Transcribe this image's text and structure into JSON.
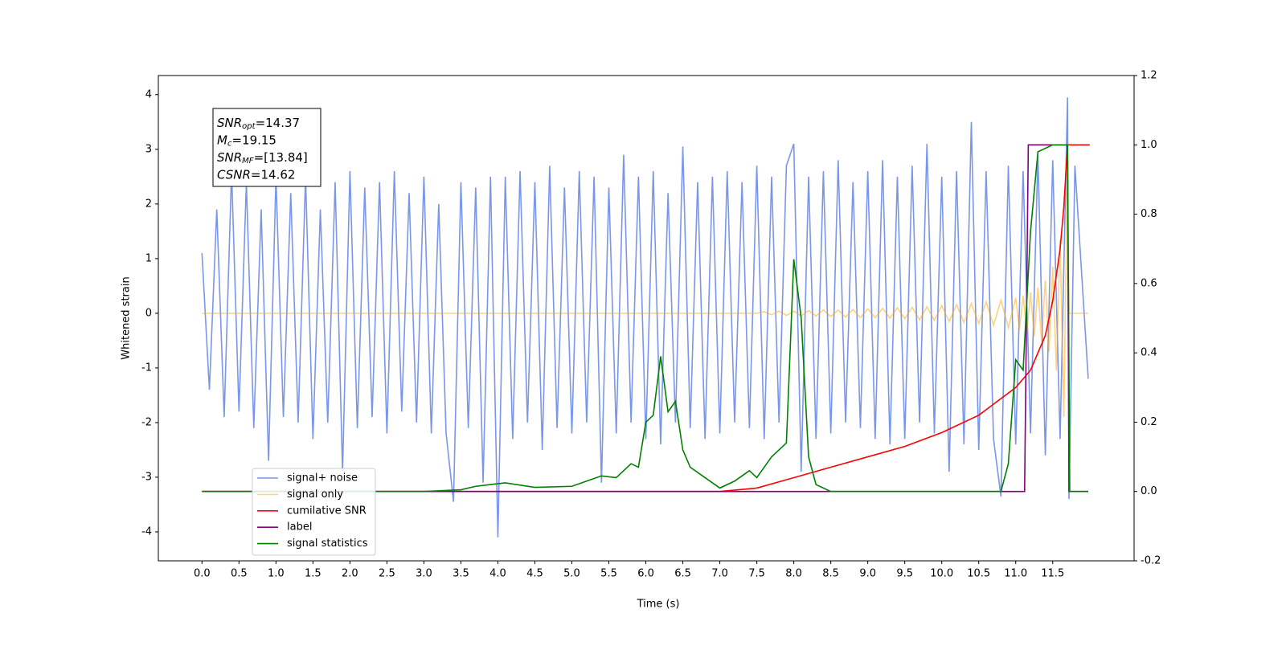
{
  "chart_data": {
    "type": "line",
    "xlabel": "Time (s)",
    "ylabel": "Whitened strain",
    "xlim": [
      -0.59,
      12.6
    ],
    "ylim": [
      -4.53,
      4.35
    ],
    "y2lim": [
      -0.2,
      1.2
    ],
    "xticks": [
      {
        "value": 0,
        "label": "0.0"
      },
      0.5,
      {
        "value": 1,
        "label": "1.0"
      },
      1.5,
      {
        "value": 2,
        "label": "2.0"
      },
      2.5,
      {
        "value": 3,
        "label": "3.0"
      },
      3.5,
      {
        "value": 4,
        "label": "4.0"
      },
      4.5,
      {
        "value": 5,
        "label": "5.0"
      },
      5.5,
      {
        "value": 6,
        "label": "6.0"
      },
      6.5,
      {
        "value": 7,
        "label": "7.0"
      },
      7.5,
      {
        "value": 8,
        "label": "8.0"
      },
      8.5,
      {
        "value": 9,
        "label": "9.0"
      },
      9.5,
      {
        "value": 10,
        "label": "10.0"
      },
      10.5,
      {
        "value": 11,
        "label": "11.0"
      },
      11.5
    ],
    "yticks": [
      -4,
      -3,
      -2,
      -1,
      0,
      1,
      2,
      3,
      4
    ],
    "y2ticks": [
      -0.2,
      {
        "value": 0,
        "label": "0.0"
      },
      0.2,
      0.4,
      0.6,
      0.8,
      {
        "value": 1,
        "label": "1.0"
      },
      1.2
    ],
    "legend": "lower left",
    "annotations": [
      {
        "base": "SNR",
        "sub": "opt",
        "text": "=14.37"
      },
      {
        "base": "M",
        "sub": "c",
        "text": "=19.15"
      },
      {
        "base": "SNR",
        "sub": "MF",
        "text": "=[13.84]"
      },
      {
        "base": "CSNR",
        "sub": null,
        "text": "=14.62"
      }
    ],
    "series": [
      {
        "name": "signal+ noise",
        "color": "#4169e1",
        "opacity": 0.7,
        "axis": "y",
        "x": [
          0,
          0.1,
          0.2,
          0.3,
          0.4,
          0.5,
          0.6,
          0.7,
          0.8,
          0.9,
          1,
          1.1,
          1.2,
          1.3,
          1.4,
          1.5,
          1.6,
          1.7,
          1.8,
          1.9,
          2,
          2.1,
          2.2,
          2.3,
          2.4,
          2.5,
          2.6,
          2.7,
          2.8,
          2.9,
          3,
          3.1,
          3.2,
          3.3,
          3.4,
          3.5,
          3.6,
          3.7,
          3.8,
          3.9,
          4,
          4.1,
          4.2,
          4.3,
          4.4,
          4.5,
          4.6,
          4.7,
          4.8,
          4.9,
          5,
          5.1,
          5.2,
          5.3,
          5.4,
          5.5,
          5.6,
          5.7,
          5.8,
          5.9,
          6,
          6.1,
          6.2,
          6.3,
          6.4,
          6.5,
          6.6,
          6.7,
          6.8,
          6.9,
          7,
          7.1,
          7.2,
          7.3,
          7.4,
          7.5,
          7.6,
          7.7,
          7.8,
          7.9,
          8,
          8.1,
          8.2,
          8.3,
          8.4,
          8.5,
          8.6,
          8.7,
          8.8,
          8.9,
          9,
          9.1,
          9.2,
          9.3,
          9.4,
          9.5,
          9.6,
          9.7,
          9.8,
          9.9,
          10,
          10.1,
          10.2,
          10.3,
          10.4,
          10.5,
          10.6,
          10.7,
          10.8,
          10.9,
          11,
          11.1,
          11.2,
          11.3,
          11.4,
          11.5,
          11.6,
          11.7,
          11.72,
          11.8,
          11.98
        ],
        "values": [
          1.1,
          -1.4,
          1.9,
          -1.9,
          2.6,
          -1.8,
          2.4,
          -2.1,
          1.9,
          -2.7,
          2.5,
          -1.9,
          2.2,
          -2.0,
          2.5,
          -2.3,
          1.9,
          -2.0,
          2.4,
          -2.9,
          2.6,
          -2.1,
          2.3,
          -1.9,
          2.4,
          -2.2,
          2.6,
          -1.8,
          2.2,
          -2.0,
          2.5,
          -2.2,
          2.0,
          -2.2,
          -3.45,
          2.4,
          -2.1,
          2.3,
          -3.1,
          2.5,
          -4.1,
          2.5,
          -2.3,
          2.6,
          -2.0,
          2.4,
          -2.5,
          2.7,
          -2.1,
          2.3,
          -2.2,
          2.6,
          -2.0,
          2.5,
          -3.1,
          2.3,
          -2.2,
          2.9,
          -2.0,
          2.5,
          -2.3,
          2.6,
          -2.4,
          2.2,
          -2.0,
          3.05,
          -2.1,
          2.4,
          -2.3,
          2.5,
          -2.2,
          2.6,
          -2.0,
          2.4,
          -2.1,
          2.7,
          -2.3,
          2.5,
          -2.0,
          2.7,
          3.1,
          -2.9,
          2.5,
          -2.3,
          2.6,
          -2.2,
          2.8,
          -2.0,
          2.4,
          -2.1,
          2.6,
          -2.3,
          2.8,
          -2.4,
          2.5,
          -2.3,
          2.7,
          -2.0,
          3.1,
          -2.2,
          2.5,
          -2.9,
          2.6,
          -2.4,
          3.5,
          -2.5,
          2.6,
          -2.3,
          -3.35,
          2.7,
          -2.4,
          2.6,
          -2.2,
          2.9,
          -2.6,
          2.8,
          -2.3,
          3.95,
          -3.4,
          2.7,
          -1.2
        ]
      },
      {
        "name": "signal only",
        "color": "#ffa500",
        "opacity": 0.5,
        "axis": "y",
        "x": [
          0,
          7.5,
          7.6,
          7.7,
          7.8,
          7.9,
          8,
          8.1,
          8.2,
          8.3,
          8.4,
          8.5,
          8.6,
          8.7,
          8.8,
          8.9,
          9,
          9.1,
          9.2,
          9.3,
          9.4,
          9.5,
          9.6,
          9.7,
          9.8,
          9.9,
          10,
          10.1,
          10.2,
          10.3,
          10.4,
          10.5,
          10.6,
          10.7,
          10.8,
          10.9,
          11,
          11.05,
          11.1,
          11.15,
          11.2,
          11.25,
          11.3,
          11.35,
          11.4,
          11.45,
          11.5,
          11.55,
          11.6,
          11.65,
          11.7,
          11.72,
          11.98
        ],
        "values": [
          0,
          0,
          0.03,
          -0.03,
          0.04,
          -0.04,
          0.04,
          -0.05,
          0.05,
          -0.05,
          0.06,
          -0.06,
          0.06,
          -0.07,
          0.07,
          -0.08,
          0.08,
          -0.08,
          0.09,
          -0.09,
          0.1,
          -0.1,
          0.11,
          -0.12,
          0.12,
          -0.13,
          0.14,
          -0.15,
          0.16,
          -0.17,
          0.18,
          -0.19,
          0.21,
          -0.22,
          0.24,
          -0.26,
          0.28,
          -0.3,
          0.32,
          -0.35,
          0.38,
          -0.42,
          0.47,
          -0.53,
          0.6,
          -0.7,
          0.85,
          -1.05,
          1.35,
          -1.9,
          2.9,
          0,
          0
        ]
      },
      {
        "name": "cumilative SNR",
        "color": "#ff0000",
        "opacity": 1,
        "axis": "y2",
        "x": [
          0,
          7,
          7.5,
          8,
          8.5,
          9,
          9.5,
          10,
          10.5,
          11,
          11.2,
          11.4,
          11.5,
          11.6,
          11.65,
          11.7,
          12
        ],
        "values": [
          0,
          0,
          0.01,
          0.04,
          0.07,
          0.1,
          0.13,
          0.17,
          0.22,
          0.3,
          0.35,
          0.45,
          0.55,
          0.7,
          0.82,
          1,
          1
        ]
      },
      {
        "name": "label",
        "color": "#800080",
        "opacity": 1,
        "axis": "y2",
        "x": [
          0,
          11.12,
          11.17,
          11.7,
          11.72,
          11.98
        ],
        "values": [
          0,
          0,
          1,
          1,
          0,
          0
        ]
      },
      {
        "name": "signal statistics",
        "color": "#008000",
        "opacity": 1,
        "axis": "y2",
        "x": [
          0,
          3,
          3.5,
          3.7,
          3.9,
          4.1,
          4.5,
          5,
          5.2,
          5.4,
          5.6,
          5.8,
          5.9,
          6,
          6.1,
          6.2,
          6.3,
          6.4,
          6.5,
          6.6,
          6.8,
          7,
          7.2,
          7.4,
          7.5,
          7.7,
          7.9,
          8,
          8.1,
          8.2,
          8.3,
          8.5,
          10.8,
          10.9,
          11,
          11.1,
          11.2,
          11.3,
          11.5,
          11.7,
          11.73,
          11.98
        ],
        "values": [
          0,
          0,
          0.005,
          0.015,
          0.02,
          0.025,
          0.012,
          0.015,
          0.03,
          0.045,
          0.04,
          0.08,
          0.07,
          0.2,
          0.22,
          0.39,
          0.23,
          0.26,
          0.12,
          0.07,
          0.04,
          0.01,
          0.03,
          0.06,
          0.04,
          0.1,
          0.14,
          0.67,
          0.5,
          0.1,
          0.02,
          0,
          0,
          0.08,
          0.38,
          0.35,
          0.75,
          0.98,
          1,
          1,
          0,
          0
        ]
      }
    ]
  }
}
